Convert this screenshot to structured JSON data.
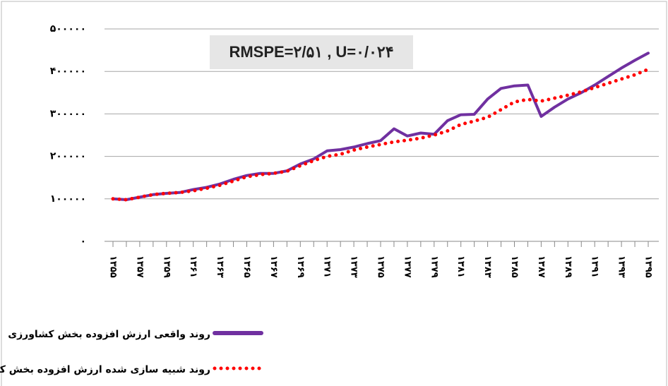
{
  "chart_data": {
    "type": "line",
    "annotation": "RMSPE=۲/۵۱ , U=۰/۰۲۴",
    "categories": [
      "۱۳۵۵",
      null,
      "۱۳۵۷",
      null,
      "۱۳۵۹",
      null,
      "۱۳۶۱",
      null,
      "۱۳۶۳",
      null,
      "۱۳۶۵",
      null,
      "۱۳۶۷",
      null,
      "۱۳۶۹",
      null,
      "۱۳۷۱",
      null,
      "۱۳۷۳",
      null,
      "۱۳۷۵",
      null,
      "۱۳۷۷",
      null,
      "۱۳۷۹",
      null,
      "۱۳۸۱",
      null,
      "۱۳۸۳",
      null,
      "۱۳۸۵",
      null,
      "۱۳۸۷",
      null,
      "۱۳۸۹",
      null,
      "۱۳۹۱",
      null,
      "۱۳۹۳",
      null,
      "۱۳۹۵"
    ],
    "series": [
      {
        "name": "روند واقعی ارزش افزوده بخش کشاورزی",
        "color": "#7030a0",
        "style": "solid",
        "values": [
          100000,
          98000,
          104000,
          110000,
          113000,
          115000,
          122000,
          127000,
          135000,
          146000,
          155000,
          160000,
          160000,
          166000,
          182000,
          194000,
          213000,
          216000,
          222000,
          230000,
          237000,
          265000,
          248000,
          255000,
          252000,
          284000,
          298000,
          299000,
          335000,
          360000,
          366000,
          368000,
          294000,
          316000,
          335000,
          350000,
          368000,
          388000,
          408000,
          426000,
          443000
        ]
      },
      {
        "name": "روند شبیه سازی شده ارزش افزوده بخش کشاورزی",
        "color": "#ff0000",
        "style": "dotted",
        "values": [
          100000,
          98000,
          104000,
          110000,
          113000,
          115000,
          119000,
          125000,
          132000,
          142000,
          152000,
          157000,
          160000,
          165000,
          178000,
          190000,
          200000,
          205000,
          215000,
          222000,
          228000,
          234000,
          238000,
          243000,
          250000,
          260000,
          275000,
          283000,
          292000,
          310000,
          328000,
          334000,
          330000,
          337000,
          344000,
          352000,
          362000,
          372000,
          382000,
          392000,
          405000
        ]
      }
    ],
    "ylim": [
      0,
      500000
    ],
    "yticks": [
      {
        "value": 0,
        "label": "۰"
      },
      {
        "value": 100000,
        "label": "۱۰۰۰۰۰"
      },
      {
        "value": 200000,
        "label": "۲۰۰۰۰۰"
      },
      {
        "value": 300000,
        "label": "۳۰۰۰۰۰"
      },
      {
        "value": 400000,
        "label": "۴۰۰۰۰۰"
      },
      {
        "value": 500000,
        "label": "۵۰۰۰۰۰"
      }
    ],
    "grid": true
  }
}
